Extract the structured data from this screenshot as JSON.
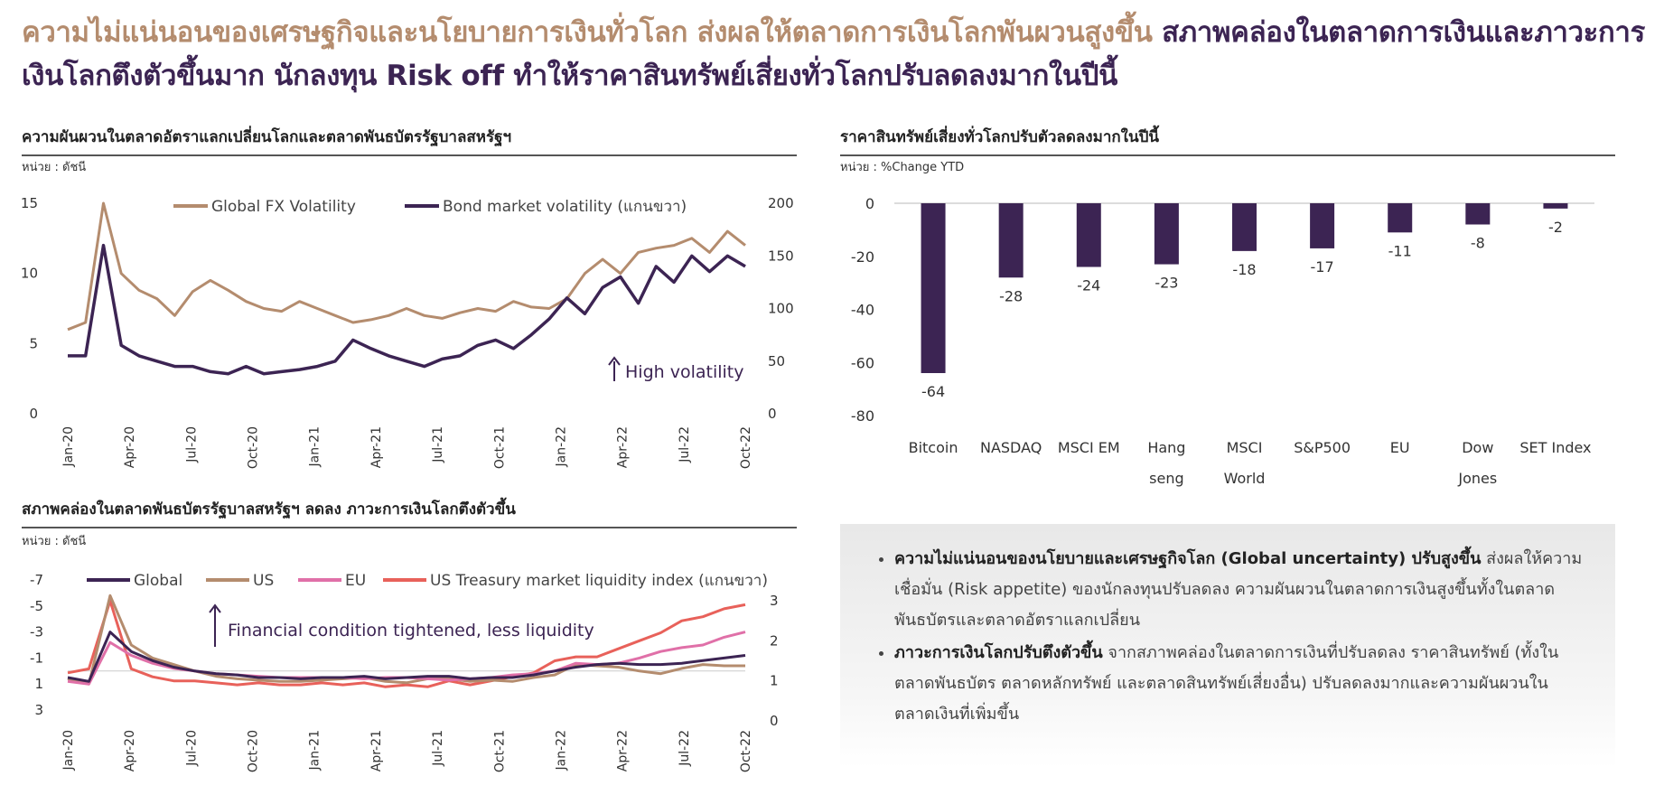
{
  "headline": {
    "part1": "ความไม่แน่นอนของเศรษฐกิจและนโยบายการเงินทั่วโลก ส่งผลให้ตลาดการเงินโลกพันผวนสูงขึ้น",
    "part2": "สภาพคล่องในตลาดการเงินและภาวะการเงินโลกตึงตัวขึ้นมาก นักลงทุน Risk off ทำให้ราคาสินทรัพย์เสี่ยงทั่วโลกปรับลดลงมากในปีนี้"
  },
  "panel1": {
    "title": "ความผันผวนในตลาดอัตราแลกเปลี่ยนโลกและตลาดพันธบัตรรัฐบาลสหรัฐฯ",
    "unit": "หน่วย : ดัชนี",
    "annotation": "High volatility"
  },
  "panel2": {
    "title": "ราคาสินทรัพย์เสี่ยงทั่วโลกปรับตัวลดลงมากในปีนี้",
    "unit": "หน่วย : %Change YTD"
  },
  "panel3": {
    "title": "สภาพคล่องในตลาดพันธบัตรรัฐบาลสหรัฐฯ ลดลง ภาวะการเงินโลกตึงตัวขึ้น",
    "unit": "หน่วย : ดัชนี",
    "annotation": "Financial condition tightened, less liquidity"
  },
  "info": {
    "b1_bold": "ความไม่แน่นอนของนโยบายและเศรษฐกิจโลก (Global uncertainty) ปรับสูงขึ้น",
    "b1_text": " ส่งผลให้ความเชื่อมั่น (Risk appetite) ของนักลงทุนปรับลดลง ความผันผวนในตลาดการเงินสูงขึ้นทั้งในตลาดพันธบัตรและตลาดอัตราแลกเปลี่ยน",
    "b2_bold": "ภาวะการเงินโลกปรับตึงตัวขึ้น",
    "b2_text": " จากสภาพคล่องในตลาดการเงินที่ปรับลดลง ราคาสินทรัพย์ (ทั้งในตลาดพันธบัตร ตลาดหลักทรัพย์ และตลาดสินทรัพย์เสี่ยงอื่น) ปรับลดลงมากและความผันผวนในตลาดเงินที่เพิ่มขึ้น"
  },
  "colors": {
    "tan": "#b48c6e",
    "purple": "#3c2453",
    "pink": "#e070a8",
    "red": "#e8615a"
  },
  "chart_data": [
    {
      "type": "line",
      "x_labels": [
        "Jan-20",
        "Apr-20",
        "Jul-20",
        "Oct-20",
        "Jan-21",
        "Apr-21",
        "Jul-21",
        "Oct-21",
        "Jan-22",
        "Apr-22",
        "Jul-22",
        "Oct-22"
      ],
      "y_left": {
        "ticks": [
          "15",
          "10",
          "5",
          "0"
        ],
        "min": 0,
        "max": 15
      },
      "y_right": {
        "ticks": [
          "200",
          "150",
          "100",
          "50",
          "0"
        ],
        "min": 0,
        "max": 200
      },
      "series": [
        {
          "name": "Global FX Volatility",
          "axis": "left",
          "values": [
            6.0,
            6.5,
            15.0,
            10.0,
            8.8,
            8.2,
            7.0,
            8.7,
            9.5,
            8.8,
            8.0,
            7.5,
            7.3,
            8.0,
            7.5,
            7.0,
            6.5,
            6.7,
            7.0,
            7.5,
            7.0,
            6.8,
            7.2,
            7.5,
            7.3,
            8.0,
            7.6,
            7.5,
            8.2,
            10.0,
            11.0,
            10.0,
            11.5,
            11.8,
            12.0,
            12.5,
            11.5,
            13.0,
            12.0
          ]
        },
        {
          "name": "Bond market volatility (แกนขวา)",
          "axis": "right",
          "values": [
            55,
            55,
            160,
            65,
            55,
            50,
            45,
            45,
            40,
            38,
            45,
            38,
            40,
            42,
            45,
            50,
            70,
            62,
            55,
            50,
            45,
            52,
            55,
            65,
            70,
            62,
            75,
            90,
            110,
            95,
            120,
            130,
            105,
            140,
            125,
            150,
            135,
            150,
            140
          ]
        }
      ]
    },
    {
      "type": "bar",
      "categories": [
        "Bitcoin",
        "NASDAQ",
        "MSCI EM",
        "Hang seng",
        "MSCI World",
        "S&P500",
        "EU",
        "Dow Jones",
        "SET Index"
      ],
      "values": [
        -64,
        -28,
        -24,
        -23,
        -18,
        -17,
        -11,
        -8,
        -2
      ],
      "value_labels": [
        "-64",
        "-28",
        "-24",
        "-23",
        "-18",
        "-17",
        "-11",
        "-8",
        "-2"
      ],
      "y_ticks": [
        "0",
        "-20",
        "-40",
        "-60",
        "-80"
      ],
      "ylim": [
        -80,
        0
      ]
    },
    {
      "type": "line",
      "x_labels": [
        "Jan-20",
        "Apr-20",
        "Jul-20",
        "Oct-20",
        "Jan-21",
        "Apr-21",
        "Jul-21",
        "Oct-21",
        "Jan-22",
        "Apr-22",
        "Jul-22",
        "Oct-22"
      ],
      "y_left": {
        "ticks": [
          "-7",
          "-5",
          "-3",
          "-1",
          "1",
          "3"
        ],
        "min": -7,
        "max": 3,
        "inverted": true
      },
      "y_right": {
        "ticks": [
          "3",
          "2",
          "1",
          "0"
        ],
        "min": 0,
        "max": 3
      },
      "series": [
        {
          "name": "Global",
          "axis": "left",
          "values": [
            0.5,
            0.8,
            -3.0,
            -1.5,
            -0.8,
            -0.3,
            0.0,
            0.2,
            0.3,
            0.5,
            0.5,
            0.6,
            0.5,
            0.5,
            0.4,
            0.6,
            0.5,
            0.4,
            0.4,
            0.6,
            0.5,
            0.5,
            0.3,
            0.0,
            -0.3,
            -0.5,
            -0.6,
            -0.5,
            -0.5,
            -0.6,
            -0.8,
            -1.0,
            -1.2
          ]
        },
        {
          "name": "US",
          "axis": "left",
          "values": [
            0.6,
            1.0,
            -5.8,
            -2.0,
            -1.0,
            -0.5,
            0.0,
            0.4,
            0.6,
            0.7,
            0.8,
            0.8,
            0.7,
            0.6,
            0.5,
            0.8,
            0.9,
            0.6,
            0.6,
            0.8,
            0.7,
            0.8,
            0.5,
            0.3,
            -0.5,
            -0.4,
            -0.3,
            0.0,
            0.2,
            -0.2,
            -0.5,
            -0.4,
            -0.4
          ]
        },
        {
          "name": "EU",
          "axis": "left",
          "values": [
            0.8,
            1.0,
            -2.2,
            -1.2,
            -0.6,
            -0.2,
            0.0,
            0.2,
            0.3,
            0.4,
            0.5,
            0.5,
            0.5,
            0.5,
            0.6,
            0.5,
            0.5,
            0.6,
            0.7,
            0.6,
            0.5,
            0.3,
            0.2,
            0.0,
            -0.6,
            -0.5,
            -0.6,
            -1.0,
            -1.5,
            -1.8,
            -2.0,
            -2.6,
            -3.0
          ]
        },
        {
          "name": "US Treasury market liquidity index (แกนขวา)",
          "axis": "right",
          "values": [
            1.2,
            1.3,
            3.0,
            1.3,
            1.1,
            1.0,
            1.0,
            0.95,
            0.9,
            0.95,
            0.9,
            0.9,
            0.95,
            0.9,
            0.95,
            0.85,
            0.9,
            0.85,
            1.0,
            0.9,
            1.0,
            1.1,
            1.2,
            1.5,
            1.6,
            1.6,
            1.8,
            2.0,
            2.2,
            2.5,
            2.6,
            2.8,
            2.9
          ]
        }
      ]
    }
  ]
}
